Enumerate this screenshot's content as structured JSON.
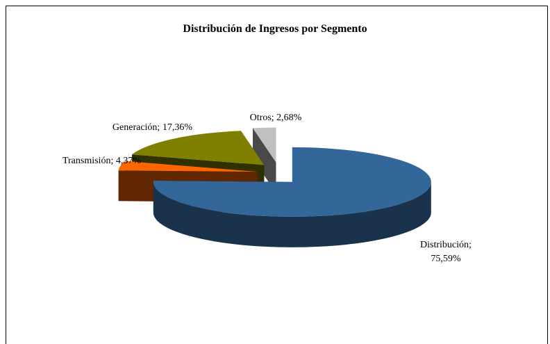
{
  "chart_data": {
    "type": "pie3d",
    "title": "Distribución de Ingresos por Segmento",
    "categories": [
      "Distribución;",
      "Transmisión;",
      "Generación;",
      "Otros;"
    ],
    "values": [
      75.59,
      4.37,
      17.36,
      2.68
    ],
    "value_labels": [
      "75,59%",
      "4,37%",
      "17,36%",
      "2,68%"
    ],
    "colors": [
      "#336699",
      "#ff6600",
      "#808000",
      "#c0c0c0"
    ]
  }
}
